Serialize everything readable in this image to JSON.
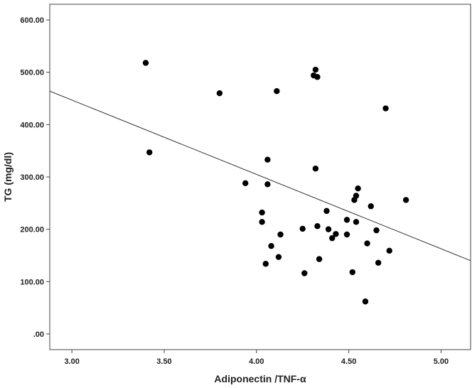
{
  "chart_data": {
    "type": "scatter",
    "xlabel": "Adiponectin /TNF-α",
    "ylabel": "TG (mg/dl)",
    "xlim": [
      2.88,
      5.16
    ],
    "ylim": [
      -30,
      630
    ],
    "xticks": [
      3.0,
      3.5,
      4.0,
      4.5,
      5.0
    ],
    "xtick_labels": [
      "3.00",
      "3.50",
      "4.00",
      "4.50",
      "5.00"
    ],
    "yticks": [
      0,
      100,
      200,
      300,
      400,
      500,
      600
    ],
    "ytick_labels": [
      ".00",
      "100.00",
      "200.00",
      "300.00",
      "400.00",
      "500.00",
      "600.00"
    ],
    "grid": false,
    "points": [
      {
        "x": 3.4,
        "y": 518
      },
      {
        "x": 3.42,
        "y": 347
      },
      {
        "x": 3.8,
        "y": 460
      },
      {
        "x": 3.94,
        "y": 288
      },
      {
        "x": 4.03,
        "y": 232
      },
      {
        "x": 4.03,
        "y": 214
      },
      {
        "x": 4.05,
        "y": 134
      },
      {
        "x": 4.06,
        "y": 333
      },
      {
        "x": 4.06,
        "y": 286
      },
      {
        "x": 4.08,
        "y": 168
      },
      {
        "x": 4.11,
        "y": 464
      },
      {
        "x": 4.12,
        "y": 147
      },
      {
        "x": 4.13,
        "y": 190
      },
      {
        "x": 4.25,
        "y": 201
      },
      {
        "x": 4.26,
        "y": 116
      },
      {
        "x": 4.31,
        "y": 494
      },
      {
        "x": 4.32,
        "y": 505
      },
      {
        "x": 4.33,
        "y": 491
      },
      {
        "x": 4.32,
        "y": 316
      },
      {
        "x": 4.33,
        "y": 206
      },
      {
        "x": 4.34,
        "y": 143
      },
      {
        "x": 4.38,
        "y": 235
      },
      {
        "x": 4.39,
        "y": 200
      },
      {
        "x": 4.41,
        "y": 183
      },
      {
        "x": 4.43,
        "y": 191
      },
      {
        "x": 4.49,
        "y": 218
      },
      {
        "x": 4.49,
        "y": 190
      },
      {
        "x": 4.52,
        "y": 118
      },
      {
        "x": 4.53,
        "y": 256
      },
      {
        "x": 4.54,
        "y": 264
      },
      {
        "x": 4.54,
        "y": 214
      },
      {
        "x": 4.55,
        "y": 278
      },
      {
        "x": 4.59,
        "y": 62
      },
      {
        "x": 4.6,
        "y": 173
      },
      {
        "x": 4.62,
        "y": 244
      },
      {
        "x": 4.65,
        "y": 198
      },
      {
        "x": 4.66,
        "y": 136
      },
      {
        "x": 4.7,
        "y": 431
      },
      {
        "x": 4.72,
        "y": 159
      },
      {
        "x": 4.81,
        "y": 256
      }
    ],
    "fit_line": {
      "x": [
        2.88,
        5.16
      ],
      "y": [
        464,
        140
      ]
    }
  }
}
